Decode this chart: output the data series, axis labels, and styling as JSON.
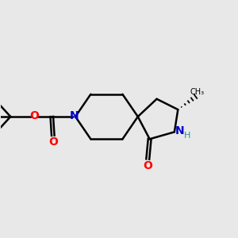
{
  "bg_color": "#e8e8e8",
  "bond_color": "#000000",
  "N_color": "#0000cd",
  "O_color": "#ff0000",
  "NH_color": "#2f8f8f",
  "text_color": "#000000",
  "figsize": [
    3.0,
    3.0
  ],
  "dpi": 100,
  "xlim": [
    0,
    10
  ],
  "ylim": [
    0,
    10
  ]
}
